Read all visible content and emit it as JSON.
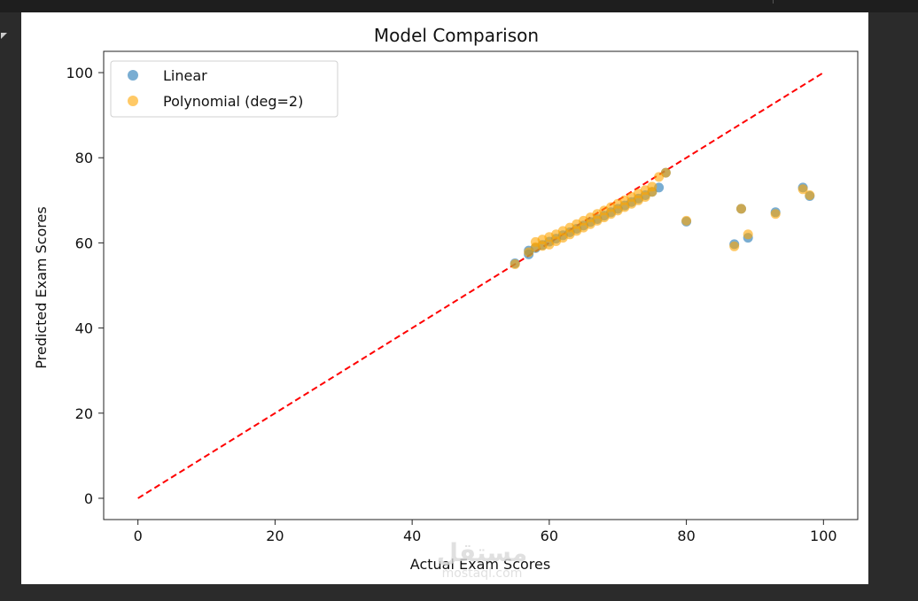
{
  "window": {
    "background": "#2b2b2b",
    "toolbar_bg": "#1e1e1e"
  },
  "watermark": {
    "arabic": "مستقل",
    "domain": "mostaql.com"
  },
  "chart_data": {
    "type": "scatter",
    "title": "Model Comparison",
    "xlabel": "Actual Exam Scores",
    "ylabel": "Predicted Exam Scores",
    "xlim": [
      -5,
      105
    ],
    "ylim": [
      -5,
      105
    ],
    "xticks": [
      0,
      20,
      40,
      60,
      80,
      100
    ],
    "yticks": [
      0,
      20,
      40,
      60,
      80,
      100
    ],
    "grid": false,
    "legend_position": "top-left",
    "series": [
      {
        "name": "Linear",
        "color": "#1f77b4",
        "alpha": 0.6,
        "points": [
          [
            55,
            55.2
          ],
          [
            57,
            57.3
          ],
          [
            57,
            58.2
          ],
          [
            58,
            58.8
          ],
          [
            59,
            59.5
          ],
          [
            60,
            60.3
          ],
          [
            61,
            61.0
          ],
          [
            62,
            61.8
          ],
          [
            63,
            62.5
          ],
          [
            64,
            63.3
          ],
          [
            65,
            64.1
          ],
          [
            66,
            64.9
          ],
          [
            67,
            65.6
          ],
          [
            68,
            66.4
          ],
          [
            69,
            67.2
          ],
          [
            70,
            68.0
          ],
          [
            71,
            68.8
          ],
          [
            72,
            69.6
          ],
          [
            73,
            70.4
          ],
          [
            74,
            71.2
          ],
          [
            75,
            72.0
          ],
          [
            76,
            73.0
          ],
          [
            77,
            76.5
          ],
          [
            80,
            65.0
          ],
          [
            87,
            59.7
          ],
          [
            88,
            68.0
          ],
          [
            89,
            61.2
          ],
          [
            93,
            67.2
          ],
          [
            97,
            73.0
          ],
          [
            98,
            71.0
          ]
        ]
      },
      {
        "name": "Polynomial (deg=2)",
        "color": "#ffa500",
        "alpha": 0.6,
        "points": [
          [
            55,
            55.0
          ],
          [
            57,
            57.8
          ],
          [
            58,
            59.0
          ],
          [
            58,
            60.2
          ],
          [
            59,
            59.3
          ],
          [
            59,
            60.8
          ],
          [
            60,
            59.6
          ],
          [
            60,
            61.4
          ],
          [
            61,
            60.4
          ],
          [
            61,
            62.0
          ],
          [
            62,
            61.2
          ],
          [
            62,
            62.8
          ],
          [
            63,
            62.0
          ],
          [
            63,
            63.6
          ],
          [
            64,
            62.8
          ],
          [
            64,
            64.4
          ],
          [
            65,
            63.6
          ],
          [
            65,
            65.2
          ],
          [
            66,
            64.4
          ],
          [
            66,
            66.0
          ],
          [
            67,
            65.2
          ],
          [
            67,
            66.8
          ],
          [
            68,
            66.0
          ],
          [
            68,
            67.6
          ],
          [
            69,
            66.8
          ],
          [
            69,
            68.4
          ],
          [
            70,
            67.6
          ],
          [
            70,
            69.2
          ],
          [
            71,
            68.4
          ],
          [
            71,
            70.0
          ],
          [
            72,
            69.2
          ],
          [
            72,
            70.8
          ],
          [
            73,
            70.0
          ],
          [
            73,
            71.6
          ],
          [
            74,
            70.8
          ],
          [
            74,
            72.4
          ],
          [
            75,
            72.0
          ],
          [
            75,
            73.2
          ],
          [
            76,
            75.5
          ],
          [
            77,
            76.5
          ],
          [
            80,
            65.2
          ],
          [
            87,
            59.2
          ],
          [
            88,
            68.0
          ],
          [
            89,
            62.0
          ],
          [
            93,
            66.8
          ],
          [
            97,
            72.6
          ],
          [
            98,
            71.2
          ]
        ]
      }
    ],
    "reference_line": {
      "from": [
        0,
        0
      ],
      "to": [
        100,
        100
      ],
      "style": "dashed",
      "color": "#ff0000"
    }
  }
}
